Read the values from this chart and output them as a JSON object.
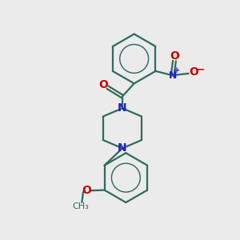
{
  "bg_color": "#ebebeb",
  "bond_color": "#2d6b5e",
  "N_color": "#2020cc",
  "O_color": "#cc0000",
  "bond_width": 1.6,
  "figsize": [
    3.0,
    3.0
  ],
  "dpi": 100,
  "xlim": [
    0,
    10
  ],
  "ylim": [
    0,
    10
  ]
}
